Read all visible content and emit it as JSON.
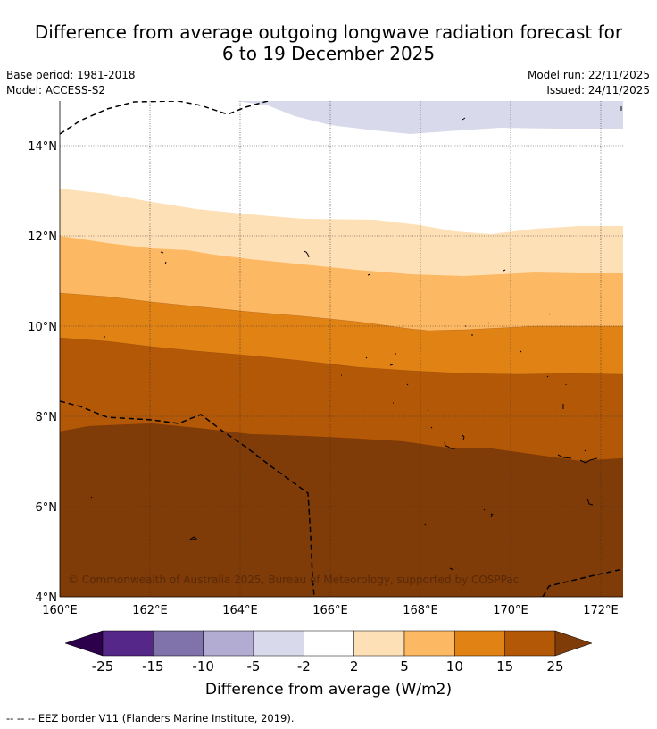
{
  "title": {
    "line1": "Difference from average outgoing longwave radiation forecast for",
    "line2": "6 to 19 December 2025"
  },
  "meta": {
    "base_period": "Base period: 1981-2018",
    "model": "Model: ACCESS-S2",
    "model_run": "Model run: 22/11/2025",
    "issued": "Issued: 24/11/2025"
  },
  "map": {
    "lon_labels": [
      "160°E",
      "162°E",
      "164°E",
      "166°E",
      "168°E",
      "170°E",
      "172°E"
    ],
    "lat_labels": [
      "14°N",
      "12°N",
      "10°N",
      "8°N",
      "6°N",
      "4°N"
    ],
    "copyright": "© Commonwealth of Australia 2025, Bureau of Meteorology, supported by COSPPac"
  },
  "colorbar": {
    "labels": [
      "-25",
      "-15",
      "-10",
      "-5",
      "-2",
      "2",
      "5",
      "10",
      "15",
      "25"
    ],
    "colors": [
      "#2d004b",
      "#542788",
      "#8073ac",
      "#b2abd2",
      "#d8daeb",
      "#ffffff",
      "#fee0b6",
      "#fdb863",
      "#e08214",
      "#b35806",
      "#7f3b08"
    ],
    "title": "Difference from average (W/m2)"
  },
  "footnote": "--  --  -- EEZ border V11 (Flanders Marine Institute, 2019)."
}
